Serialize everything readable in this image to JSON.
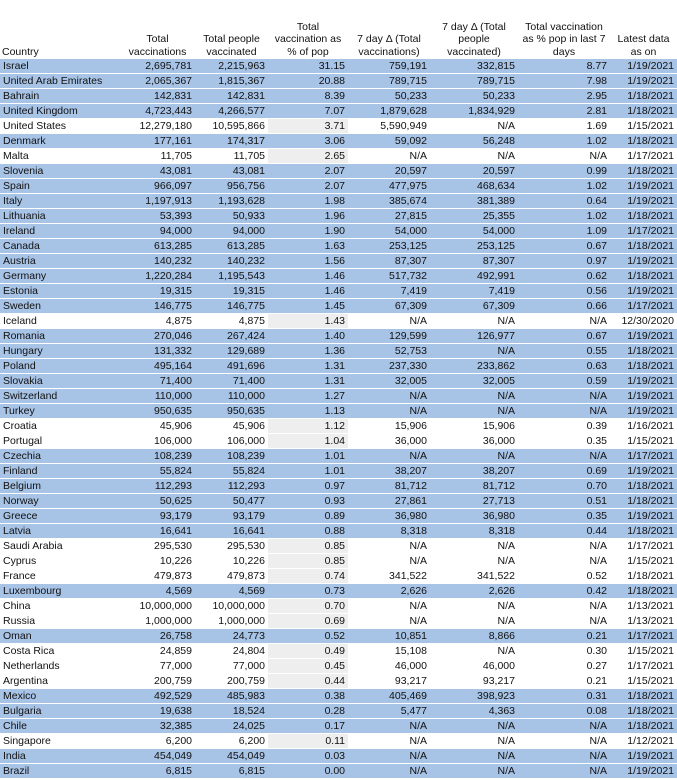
{
  "table": {
    "header": [
      "Country",
      "Total vaccinations",
      "Total people vaccinated",
      "Total vaccination as % of pop",
      "7 day Δ (Total vaccinations)",
      "7 day Δ (Total people vaccinated)",
      "Total vaccination as % pop in last 7 days",
      "Latest data as on"
    ],
    "rows": [
      {
        "shaded": true,
        "cells": [
          "Israel",
          "2,695,781",
          "2,215,963",
          "31.15",
          "759,191",
          "332,815",
          "8.77",
          "1/19/2021"
        ]
      },
      {
        "shaded": true,
        "cells": [
          "United Arab Emirates",
          "2,065,367",
          "1,815,367",
          "20.88",
          "789,715",
          "789,715",
          "7.98",
          "1/19/2021"
        ]
      },
      {
        "shaded": true,
        "cells": [
          "Bahrain",
          "142,831",
          "142,831",
          "8.39",
          "50,233",
          "50,233",
          "2.95",
          "1/18/2021"
        ]
      },
      {
        "shaded": true,
        "cells": [
          "United Kingdom",
          "4,723,443",
          "4,266,577",
          "7.07",
          "1,879,628",
          "1,834,929",
          "2.81",
          "1/18/2021"
        ]
      },
      {
        "shaded": false,
        "cells": [
          "United States",
          "12,279,180",
          "10,595,866",
          "3.71",
          "5,590,949",
          "N/A",
          "1.69",
          "1/15/2021"
        ]
      },
      {
        "shaded": true,
        "cells": [
          "Denmark",
          "177,161",
          "174,317",
          "3.06",
          "59,092",
          "56,248",
          "1.02",
          "1/18/2021"
        ]
      },
      {
        "shaded": false,
        "cells": [
          "Malta",
          "11,705",
          "11,705",
          "2.65",
          "N/A",
          "N/A",
          "N/A",
          "1/17/2021"
        ]
      },
      {
        "shaded": true,
        "cells": [
          "Slovenia",
          "43,081",
          "43,081",
          "2.07",
          "20,597",
          "20,597",
          "0.99",
          "1/18/2021"
        ]
      },
      {
        "shaded": true,
        "cells": [
          "Spain",
          "966,097",
          "956,756",
          "2.07",
          "477,975",
          "468,634",
          "1.02",
          "1/19/2021"
        ]
      },
      {
        "shaded": true,
        "cells": [
          "Italy",
          "1,197,913",
          "1,193,628",
          "1.98",
          "385,674",
          "381,389",
          "0.64",
          "1/19/2021"
        ]
      },
      {
        "shaded": true,
        "cells": [
          "Lithuania",
          "53,393",
          "50,933",
          "1.96",
          "27,815",
          "25,355",
          "1.02",
          "1/18/2021"
        ]
      },
      {
        "shaded": true,
        "cells": [
          "Ireland",
          "94,000",
          "94,000",
          "1.90",
          "54,000",
          "54,000",
          "1.09",
          "1/17/2021"
        ]
      },
      {
        "shaded": true,
        "cells": [
          "Canada",
          "613,285",
          "613,285",
          "1.63",
          "253,125",
          "253,125",
          "0.67",
          "1/18/2021"
        ]
      },
      {
        "shaded": true,
        "cells": [
          "Austria",
          "140,232",
          "140,232",
          "1.56",
          "87,307",
          "87,307",
          "0.97",
          "1/19/2021"
        ]
      },
      {
        "shaded": true,
        "cells": [
          "Germany",
          "1,220,284",
          "1,195,543",
          "1.46",
          "517,732",
          "492,991",
          "0.62",
          "1/18/2021"
        ]
      },
      {
        "shaded": true,
        "cells": [
          "Estonia",
          "19,315",
          "19,315",
          "1.46",
          "7,419",
          "7,419",
          "0.56",
          "1/19/2021"
        ]
      },
      {
        "shaded": true,
        "cells": [
          "Sweden",
          "146,775",
          "146,775",
          "1.45",
          "67,309",
          "67,309",
          "0.66",
          "1/17/2021"
        ]
      },
      {
        "shaded": false,
        "cells": [
          "Iceland",
          "4,875",
          "4,875",
          "1.43",
          "N/A",
          "N/A",
          "N/A",
          "12/30/2020"
        ]
      },
      {
        "shaded": true,
        "cells": [
          "Romania",
          "270,046",
          "267,424",
          "1.40",
          "129,599",
          "126,977",
          "0.67",
          "1/19/2021"
        ]
      },
      {
        "shaded": true,
        "cells": [
          "Hungary",
          "131,332",
          "129,689",
          "1.36",
          "52,753",
          "N/A",
          "0.55",
          "1/18/2021"
        ]
      },
      {
        "shaded": true,
        "cells": [
          "Poland",
          "495,164",
          "491,696",
          "1.31",
          "237,330",
          "233,862",
          "0.63",
          "1/18/2021"
        ]
      },
      {
        "shaded": true,
        "cells": [
          "Slovakia",
          "71,400",
          "71,400",
          "1.31",
          "32,005",
          "32,005",
          "0.59",
          "1/19/2021"
        ]
      },
      {
        "shaded": true,
        "cells": [
          "Switzerland",
          "110,000",
          "110,000",
          "1.27",
          "N/A",
          "N/A",
          "N/A",
          "1/19/2021"
        ]
      },
      {
        "shaded": true,
        "cells": [
          "Turkey",
          "950,635",
          "950,635",
          "1.13",
          "N/A",
          "N/A",
          "N/A",
          "1/19/2021"
        ]
      },
      {
        "shaded": false,
        "cells": [
          "Croatia",
          "45,906",
          "45,906",
          "1.12",
          "15,906",
          "15,906",
          "0.39",
          "1/16/2021"
        ]
      },
      {
        "shaded": false,
        "cells": [
          "Portugal",
          "106,000",
          "106,000",
          "1.04",
          "36,000",
          "36,000",
          "0.35",
          "1/15/2021"
        ]
      },
      {
        "shaded": true,
        "cells": [
          "Czechia",
          "108,239",
          "108,239",
          "1.01",
          "N/A",
          "N/A",
          "N/A",
          "1/17/2021"
        ]
      },
      {
        "shaded": true,
        "cells": [
          "Finland",
          "55,824",
          "55,824",
          "1.01",
          "38,207",
          "38,207",
          "0.69",
          "1/19/2021"
        ]
      },
      {
        "shaded": true,
        "cells": [
          "Belgium",
          "112,293",
          "112,293",
          "0.97",
          "81,712",
          "81,712",
          "0.70",
          "1/18/2021"
        ]
      },
      {
        "shaded": true,
        "cells": [
          "Norway",
          "50,625",
          "50,477",
          "0.93",
          "27,861",
          "27,713",
          "0.51",
          "1/18/2021"
        ]
      },
      {
        "shaded": true,
        "cells": [
          "Greece",
          "93,179",
          "93,179",
          "0.89",
          "36,980",
          "36,980",
          "0.35",
          "1/19/2021"
        ]
      },
      {
        "shaded": true,
        "cells": [
          "Latvia",
          "16,641",
          "16,641",
          "0.88",
          "8,318",
          "8,318",
          "0.44",
          "1/18/2021"
        ]
      },
      {
        "shaded": false,
        "cells": [
          "Saudi Arabia",
          "295,530",
          "295,530",
          "0.85",
          "N/A",
          "N/A",
          "N/A",
          "1/17/2021"
        ]
      },
      {
        "shaded": false,
        "cells": [
          "Cyprus",
          "10,226",
          "10,226",
          "0.85",
          "N/A",
          "N/A",
          "N/A",
          "1/15/2021"
        ]
      },
      {
        "shaded": false,
        "cells": [
          "France",
          "479,873",
          "479,873",
          "0.74",
          "341,522",
          "341,522",
          "0.52",
          "1/18/2021"
        ]
      },
      {
        "shaded": true,
        "cells": [
          "Luxembourg",
          "4,569",
          "4,569",
          "0.73",
          "2,626",
          "2,626",
          "0.42",
          "1/18/2021"
        ]
      },
      {
        "shaded": false,
        "cells": [
          "China",
          "10,000,000",
          "10,000,000",
          "0.70",
          "N/A",
          "N/A",
          "N/A",
          "1/13/2021"
        ]
      },
      {
        "shaded": false,
        "cells": [
          "Russia",
          "1,000,000",
          "1,000,000",
          "0.69",
          "N/A",
          "N/A",
          "N/A",
          "1/13/2021"
        ]
      },
      {
        "shaded": true,
        "cells": [
          "Oman",
          "26,758",
          "24,773",
          "0.52",
          "10,851",
          "8,866",
          "0.21",
          "1/17/2021"
        ]
      },
      {
        "shaded": false,
        "cells": [
          "Costa Rica",
          "24,859",
          "24,804",
          "0.49",
          "15,108",
          "N/A",
          "0.30",
          "1/15/2021"
        ]
      },
      {
        "shaded": false,
        "cells": [
          "Netherlands",
          "77,000",
          "77,000",
          "0.45",
          "46,000",
          "46,000",
          "0.27",
          "1/17/2021"
        ]
      },
      {
        "shaded": false,
        "cells": [
          "Argentina",
          "200,759",
          "200,759",
          "0.44",
          "93,217",
          "93,217",
          "0.21",
          "1/15/2021"
        ]
      },
      {
        "shaded": true,
        "cells": [
          "Mexico",
          "492,529",
          "485,983",
          "0.38",
          "405,469",
          "398,923",
          "0.31",
          "1/18/2021"
        ]
      },
      {
        "shaded": true,
        "cells": [
          "Bulgaria",
          "19,638",
          "18,524",
          "0.28",
          "5,477",
          "4,363",
          "0.08",
          "1/18/2021"
        ]
      },
      {
        "shaded": true,
        "cells": [
          "Chile",
          "32,385",
          "24,025",
          "0.17",
          "N/A",
          "N/A",
          "N/A",
          "1/18/2021"
        ]
      },
      {
        "shaded": false,
        "cells": [
          "Singapore",
          "6,200",
          "6,200",
          "0.11",
          "N/A",
          "N/A",
          "N/A",
          "1/12/2021"
        ]
      },
      {
        "shaded": true,
        "cells": [
          "India",
          "454,049",
          "454,049",
          "0.03",
          "N/A",
          "N/A",
          "N/A",
          "1/19/2021"
        ]
      },
      {
        "shaded": true,
        "cells": [
          "Brazil",
          "6,815",
          "6,815",
          "0.00",
          "N/A",
          "N/A",
          "N/A",
          "1/19/2021"
        ]
      }
    ]
  }
}
